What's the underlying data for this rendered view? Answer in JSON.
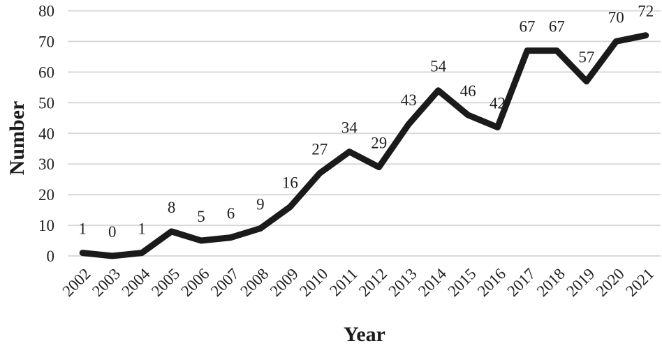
{
  "chart_data": {
    "type": "line",
    "title": "",
    "xlabel": "Year",
    "ylabel": "Number",
    "categories": [
      "2002",
      "2003",
      "2004",
      "2005",
      "2006",
      "2007",
      "2008",
      "2009",
      "2010",
      "2011",
      "2012",
      "2013",
      "2014",
      "2015",
      "2016",
      "2017",
      "2018",
      "2019",
      "2020",
      "2021"
    ],
    "values": [
      1,
      0,
      1,
      8,
      5,
      6,
      9,
      16,
      27,
      34,
      29,
      43,
      54,
      46,
      42,
      67,
      67,
      57,
      70,
      72
    ],
    "ylim": [
      0,
      80
    ],
    "ytick_step": 10,
    "ytick_labels": [
      "0",
      "10",
      "20",
      "30",
      "40",
      "50",
      "60",
      "70",
      "80"
    ],
    "grid": "horizontal",
    "legend": "none",
    "data_labels": true,
    "line_color": "#1a1a1a",
    "gridline_color": "#d9d9d9",
    "text_color": "#1f1f1f"
  }
}
